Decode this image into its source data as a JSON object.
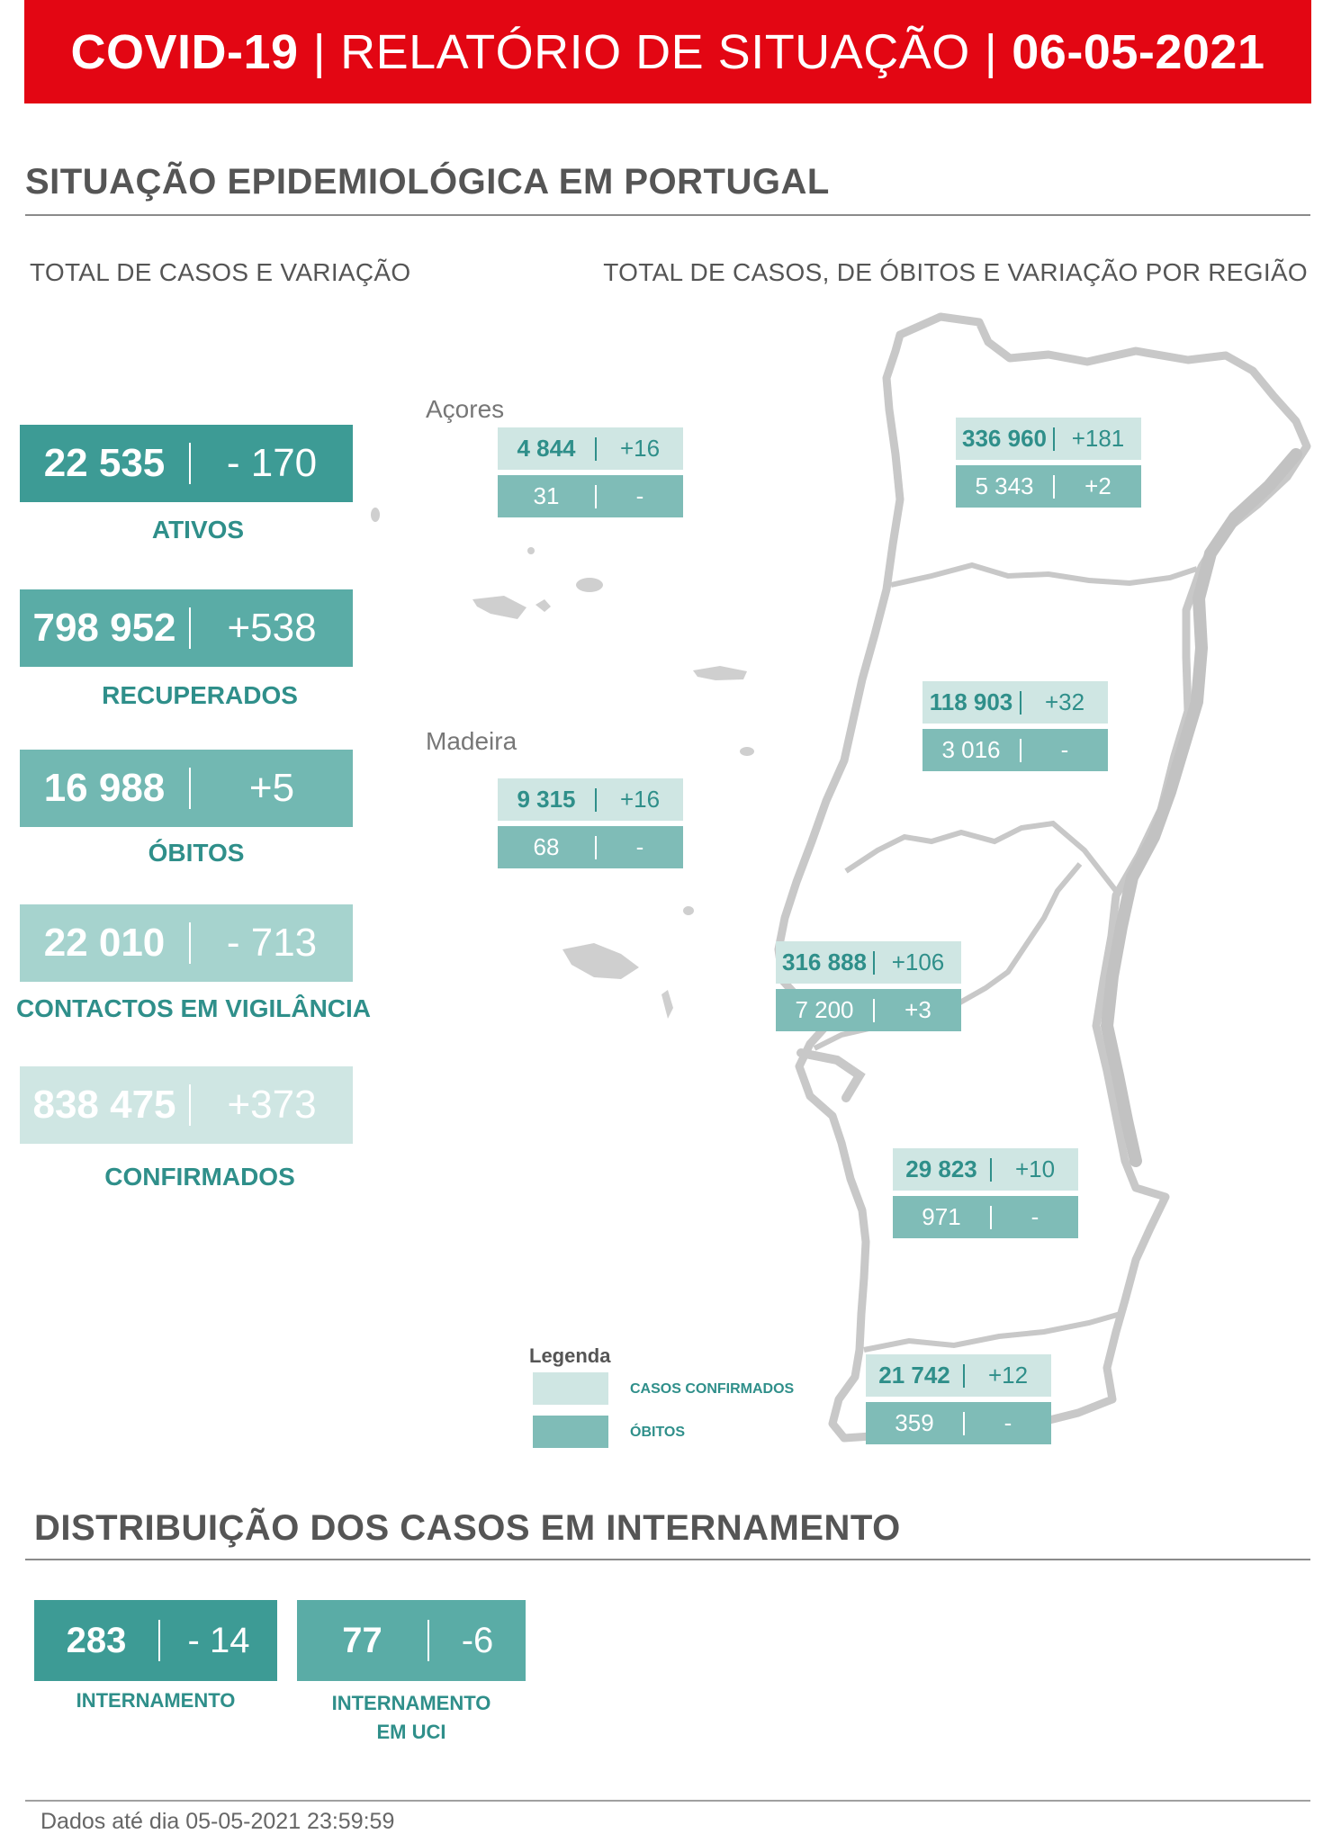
{
  "header": {
    "title_bold": "COVID-19",
    "divider": "|",
    "title_middle": "RELATÓRIO DE SITUAÇÃO",
    "date": "06-05-2021"
  },
  "section_epi": {
    "title": "SITUAÇÃO EPIDEMIOLÓGICA EM PORTUGAL",
    "left_subtitle": "TOTAL DE CASOS E VARIAÇÃO",
    "right_subtitle": "TOTAL DE CASOS, DE ÓBITOS E VARIAÇÃO POR REGIÃO"
  },
  "colors": {
    "banner": "#e30613",
    "ativos": "#3d9b95",
    "recuperados": "#5aaca6",
    "obitos": "#72b8b2",
    "contactos": "#a6d3ce",
    "confirmados": "#cfe6e3",
    "label": "#2f8f8a",
    "legend_confirmed": "#cfe6e3",
    "legend_deaths": "#7fbcb7"
  },
  "stats": [
    {
      "value": "22 535",
      "variation": "- 170",
      "label": "ATIVOS"
    },
    {
      "value": "798 952",
      "variation": "+538",
      "label": "RECUPERADOS"
    },
    {
      "value": "16 988",
      "variation": "+5",
      "label": "ÓBITOS"
    },
    {
      "value": "22 010",
      "variation": "- 713",
      "label": "CONTACTOS EM VIGILÂNCIA"
    },
    {
      "value": "838 475",
      "variation": "+373",
      "label": "CONFIRMADOS"
    }
  ],
  "islands": {
    "acores": "Açores",
    "madeira": "Madeira"
  },
  "regions": [
    {
      "cases": "4 844",
      "cases_var": "+16",
      "deaths": "31",
      "deaths_var": "-"
    },
    {
      "cases": "336 960",
      "cases_var": "+181",
      "deaths": "5 343",
      "deaths_var": "+2"
    },
    {
      "cases": "118 903",
      "cases_var": "+32",
      "deaths": "3 016",
      "deaths_var": "-"
    },
    {
      "cases": "9 315",
      "cases_var": "+16",
      "deaths": "68",
      "deaths_var": "-"
    },
    {
      "cases": "316 888",
      "cases_var": "+106",
      "deaths": "7 200",
      "deaths_var": "+3"
    },
    {
      "cases": "29 823",
      "cases_var": "+10",
      "deaths": "971",
      "deaths_var": "-"
    },
    {
      "cases": "21 742",
      "cases_var": "+12",
      "deaths": "359",
      "deaths_var": "-"
    }
  ],
  "legend": {
    "title": "Legenda",
    "confirmed": "CASOS CONFIRMADOS",
    "deaths": "ÓBITOS"
  },
  "section_hosp": {
    "title": "DISTRIBUIÇÃO DOS CASOS EM INTERNAMENTO",
    "ward": {
      "value": "283",
      "variation": "- 14",
      "label": "INTERNAMENTO"
    },
    "icu": {
      "value": "77",
      "variation": "-6",
      "label_line1": "INTERNAMENTO",
      "label_line2": "EM UCI"
    }
  },
  "footer": {
    "text": "Dados até dia 05-05-2021 23:59:59"
  }
}
